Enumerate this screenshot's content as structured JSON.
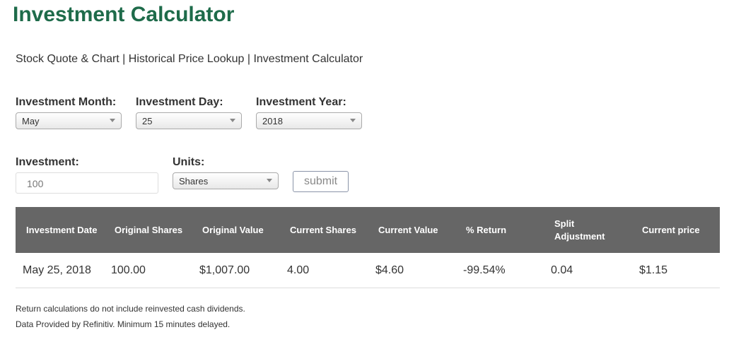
{
  "title": "Investment Calculator",
  "nav": [
    "Stock Quote & Chart",
    "Historical Price Lookup",
    "Investment Calculator"
  ],
  "nav_sep": " | ",
  "form": {
    "month_label": "Investment Month:",
    "month_value": "May",
    "day_label": "Investment Day:",
    "day_value": "25",
    "year_label": "Investment Year:",
    "year_value": "2018",
    "investment_label": "Investment:",
    "investment_value": "100",
    "units_label": "Units:",
    "units_value": "Shares",
    "submit_label": "submit"
  },
  "table": {
    "headers": [
      "Investment Date",
      "Original Shares",
      "Original Value",
      "Current Shares",
      "Current Value",
      "% Return",
      "Split Adjustment",
      "Current price"
    ],
    "rows": [
      [
        "May 25, 2018",
        "100.00",
        "$1,007.00",
        "4.00",
        "$4.60",
        "-99.54%",
        "0.04",
        "$1.15"
      ]
    ]
  },
  "notes": [
    "Return calculations do not include reinvested cash dividends.",
    "Data Provided by Refinitiv. Minimum 15 minutes delayed."
  ],
  "colors": {
    "title": "#1e6b4a",
    "table_header": "#666666"
  }
}
